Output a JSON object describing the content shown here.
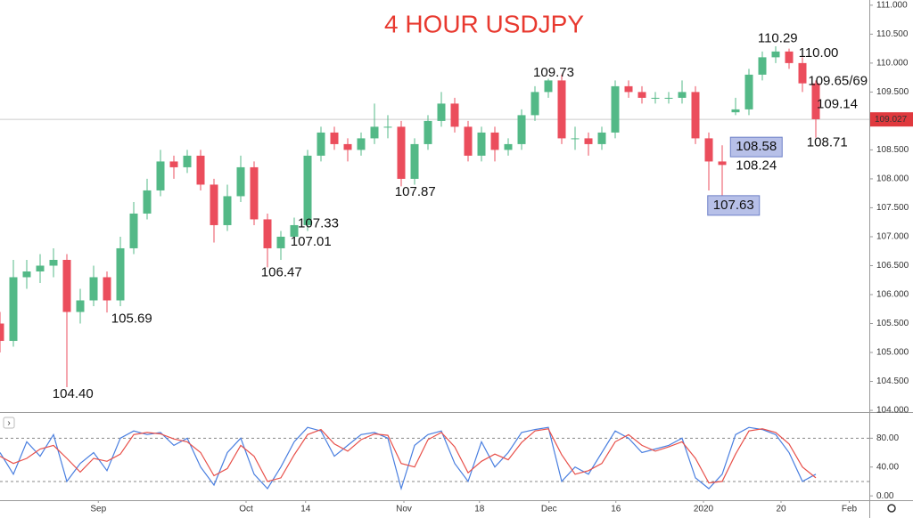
{
  "chart_data": {
    "type": "candlestick",
    "title": "4 HOUR USDJPY",
    "title_color": "#e8392f",
    "up_color": "#53b987",
    "down_color": "#eb4d5c",
    "x": [
      0,
      2,
      4,
      6,
      8,
      10,
      12,
      14,
      16,
      18,
      20,
      22,
      24,
      26,
      28,
      30,
      32,
      34,
      36,
      38,
      40,
      42,
      44,
      46,
      48,
      50,
      52,
      54,
      56,
      58,
      60,
      62,
      64,
      66,
      68,
      70,
      72,
      74,
      76,
      78,
      80,
      82,
      84,
      86,
      88,
      90,
      92,
      94,
      96,
      98,
      100,
      102,
      104,
      106,
      108,
      110,
      112,
      114,
      116,
      118,
      120,
      122
    ],
    "ohlc": [
      [
        105.5,
        105.7,
        105.0,
        105.2
      ],
      [
        105.2,
        106.6,
        105.1,
        106.3
      ],
      [
        106.3,
        106.6,
        106.1,
        106.4
      ],
      [
        106.4,
        106.7,
        106.2,
        106.5
      ],
      [
        106.5,
        106.8,
        106.3,
        106.6
      ],
      [
        106.6,
        106.7,
        104.4,
        105.7
      ],
      [
        105.7,
        106.1,
        105.5,
        105.9
      ],
      [
        105.9,
        106.5,
        105.8,
        106.3
      ],
      [
        106.3,
        106.4,
        105.69,
        105.9
      ],
      [
        105.9,
        107.0,
        105.8,
        106.8
      ],
      [
        106.8,
        107.6,
        106.7,
        107.4
      ],
      [
        107.4,
        108.0,
        107.3,
        107.8
      ],
      [
        107.8,
        108.5,
        107.7,
        108.3
      ],
      [
        108.3,
        108.4,
        108.0,
        108.2
      ],
      [
        108.2,
        108.5,
        108.1,
        108.4
      ],
      [
        108.4,
        108.5,
        107.8,
        107.9
      ],
      [
        107.9,
        108.0,
        106.9,
        107.2
      ],
      [
        107.2,
        107.9,
        107.1,
        107.7
      ],
      [
        107.7,
        108.4,
        107.6,
        108.2
      ],
      [
        108.2,
        108.3,
        107.2,
        107.3
      ],
      [
        107.3,
        107.4,
        106.47,
        106.8
      ],
      [
        106.8,
        107.1,
        106.6,
        107.0
      ],
      [
        107.0,
        107.33,
        106.9,
        107.2
      ],
      [
        107.2,
        108.5,
        107.1,
        108.4
      ],
      [
        108.4,
        108.9,
        108.3,
        108.8
      ],
      [
        108.8,
        108.9,
        108.5,
        108.6
      ],
      [
        108.6,
        108.7,
        108.3,
        108.5
      ],
      [
        108.5,
        108.8,
        108.4,
        108.7
      ],
      [
        108.7,
        109.3,
        108.6,
        108.9
      ],
      [
        108.9,
        109.1,
        108.7,
        108.9
      ],
      [
        108.9,
        109.0,
        107.87,
        108.0
      ],
      [
        108.0,
        108.7,
        107.9,
        108.6
      ],
      [
        108.6,
        109.1,
        108.5,
        109.0
      ],
      [
        109.0,
        109.5,
        108.9,
        109.3
      ],
      [
        109.3,
        109.4,
        108.8,
        108.9
      ],
      [
        108.9,
        109.0,
        108.3,
        108.4
      ],
      [
        108.4,
        108.9,
        108.3,
        108.8
      ],
      [
        108.8,
        108.9,
        108.3,
        108.5
      ],
      [
        108.5,
        108.7,
        108.4,
        108.6
      ],
      [
        108.6,
        109.2,
        108.5,
        109.1
      ],
      [
        109.1,
        109.6,
        109.0,
        109.5
      ],
      [
        109.5,
        109.73,
        109.4,
        109.7
      ],
      [
        109.7,
        109.8,
        108.6,
        108.7
      ],
      [
        108.7,
        108.9,
        108.5,
        108.7
      ],
      [
        108.7,
        108.8,
        108.4,
        108.6
      ],
      [
        108.6,
        108.9,
        108.5,
        108.8
      ],
      [
        108.8,
        109.7,
        108.7,
        109.6
      ],
      [
        109.6,
        109.7,
        109.4,
        109.5
      ],
      [
        109.5,
        109.6,
        109.3,
        109.4
      ],
      [
        109.4,
        109.5,
        109.3,
        109.4
      ],
      [
        109.4,
        109.5,
        109.3,
        109.4
      ],
      [
        109.4,
        109.7,
        109.3,
        109.5
      ],
      [
        109.5,
        109.6,
        108.6,
        108.7
      ],
      [
        108.7,
        108.8,
        107.8,
        108.3
      ],
      [
        108.3,
        108.58,
        107.63,
        108.24
      ],
      [
        109.15,
        109.4,
        109.1,
        109.2
      ],
      [
        109.2,
        109.9,
        109.1,
        109.8
      ],
      [
        109.8,
        110.2,
        109.7,
        110.1
      ],
      [
        110.1,
        110.29,
        110.0,
        110.2
      ],
      [
        110.2,
        110.25,
        109.9,
        110.0
      ],
      [
        110.0,
        110.1,
        109.5,
        109.65
      ],
      [
        109.65,
        109.7,
        108.71,
        109.03
      ]
    ],
    "xlim": [
      0,
      130
    ],
    "xticks": [
      {
        "value": 14.7,
        "label": "Sep"
      },
      {
        "value": 36.8,
        "label": "Oct"
      },
      {
        "value": 45.7,
        "label": "14"
      },
      {
        "value": 60.4,
        "label": "Nov"
      },
      {
        "value": 71.7,
        "label": "18"
      },
      {
        "value": 82.1,
        "label": "Dec"
      },
      {
        "value": 92.1,
        "label": "16"
      },
      {
        "value": 105.2,
        "label": "2020"
      },
      {
        "value": 116.8,
        "label": "20"
      },
      {
        "value": 127,
        "label": "Feb"
      }
    ],
    "ylim": [
      103.97,
      111.09
    ],
    "yticks": [
      {
        "value": 104,
        "label": "104.000"
      },
      {
        "value": 104.5,
        "label": "104.500"
      },
      {
        "value": 105,
        "label": "105.000"
      },
      {
        "value": 105.5,
        "label": "105.500"
      },
      {
        "value": 106,
        "label": "106.000"
      },
      {
        "value": 106.5,
        "label": "106.500"
      },
      {
        "value": 107,
        "label": "107.000"
      },
      {
        "value": 107.5,
        "label": "107.500"
      },
      {
        "value": 108,
        "label": "108.000"
      },
      {
        "value": 108.5,
        "label": "108.500"
      },
      {
        "value": 109,
        "label": "109.000"
      },
      {
        "value": 109.5,
        "label": "109.500"
      },
      {
        "value": 110,
        "label": "110.000"
      },
      {
        "value": 110.5,
        "label": "110.500"
      },
      {
        "value": 111,
        "label": "111.000"
      }
    ],
    "last_price": {
      "value": 109.027,
      "label": "109.027",
      "color": "#e0393e"
    },
    "annotations": [
      {
        "text": "104.40",
        "x": 10.9,
        "y": 104.28
      },
      {
        "text": "105.69",
        "x": 19.7,
        "y": 105.58
      },
      {
        "text": "106.47",
        "x": 42.1,
        "y": 106.38
      },
      {
        "text": "107.33",
        "x": 47.6,
        "y": 107.22
      },
      {
        "text": "107.01",
        "x": 46.5,
        "y": 106.91
      },
      {
        "text": "107.87",
        "x": 62.1,
        "y": 107.77
      },
      {
        "text": "109.73",
        "x": 82.8,
        "y": 109.83
      },
      {
        "text": "110.29",
        "x": 116.3,
        "y": 110.42
      },
      {
        "text": "110.00",
        "x": 122.4,
        "y": 110.17
      },
      {
        "text": "109.65/69",
        "x": 125.3,
        "y": 109.68
      },
      {
        "text": "109.14",
        "x": 125.2,
        "y": 109.28
      },
      {
        "text": "108.71",
        "x": 123.7,
        "y": 108.62
      },
      {
        "text": "108.58",
        "x": 113.1,
        "y": 108.55,
        "boxed": true
      },
      {
        "text": "108.24",
        "x": 113.1,
        "y": 108.22
      },
      {
        "text": "107.63",
        "x": 109.7,
        "y": 107.54,
        "boxed": true
      }
    ],
    "oscillator": {
      "ylim": [
        -6,
        115
      ],
      "yticks": [
        {
          "value": 0,
          "label": "0.00"
        },
        {
          "value": 40,
          "label": "40.00"
        },
        {
          "value": 80,
          "label": "80.00"
        }
      ],
      "levels": [
        20,
        80
      ],
      "series": [
        {
          "color": "#4a7fe0",
          "values": [
            60,
            30,
            75,
            55,
            85,
            20,
            45,
            60,
            35,
            80,
            90,
            85,
            88,
            70,
            80,
            40,
            15,
            60,
            80,
            30,
            10,
            40,
            75,
            95,
            90,
            55,
            70,
            85,
            88,
            80,
            10,
            70,
            85,
            90,
            45,
            20,
            75,
            40,
            60,
            88,
            92,
            95,
            20,
            40,
            30,
            60,
            90,
            80,
            60,
            65,
            70,
            80,
            25,
            10,
            30,
            85,
            95,
            92,
            85,
            60,
            20,
            30
          ]
        },
        {
          "color": "#e8504a",
          "values": [
            55,
            45,
            52,
            65,
            70,
            52,
            33,
            52,
            48,
            58,
            85,
            88,
            86,
            79,
            75,
            60,
            28,
            38,
            70,
            55,
            20,
            25,
            57,
            85,
            92,
            72,
            62,
            78,
            86,
            84,
            45,
            40,
            78,
            88,
            68,
            32,
            48,
            58,
            50,
            74,
            90,
            93,
            57,
            30,
            35,
            45,
            75,
            85,
            70,
            62,
            68,
            75,
            52,
            18,
            20,
            58,
            90,
            93,
            88,
            72,
            40,
            25
          ]
        }
      ]
    }
  }
}
